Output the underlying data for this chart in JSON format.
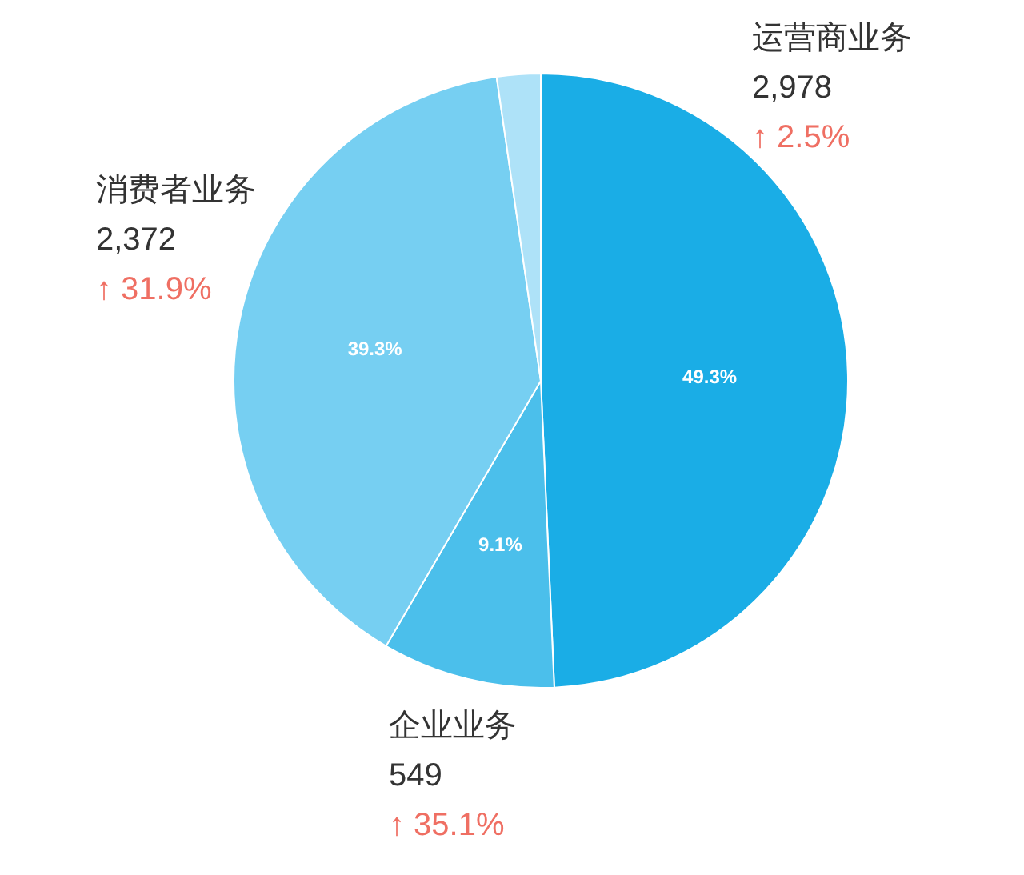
{
  "chart_data": {
    "type": "pie",
    "categories": [
      "运营商业务",
      "企业业务",
      "消费者业务",
      null
    ],
    "values": [
      49.3,
      9.1,
      39.3,
      2.3
    ],
    "colors": [
      "#1aade6",
      "#4bbfeb",
      "#76cff2",
      "#aee2f8"
    ],
    "value_labels": [
      "49.3%",
      "9.1%",
      "39.3%",
      null
    ],
    "legend": false,
    "annotations": [
      "2,978",
      "↑ 2.5%",
      "549",
      "↑ 35.1%",
      "2,372",
      "↑ 31.9%"
    ]
  }
}
